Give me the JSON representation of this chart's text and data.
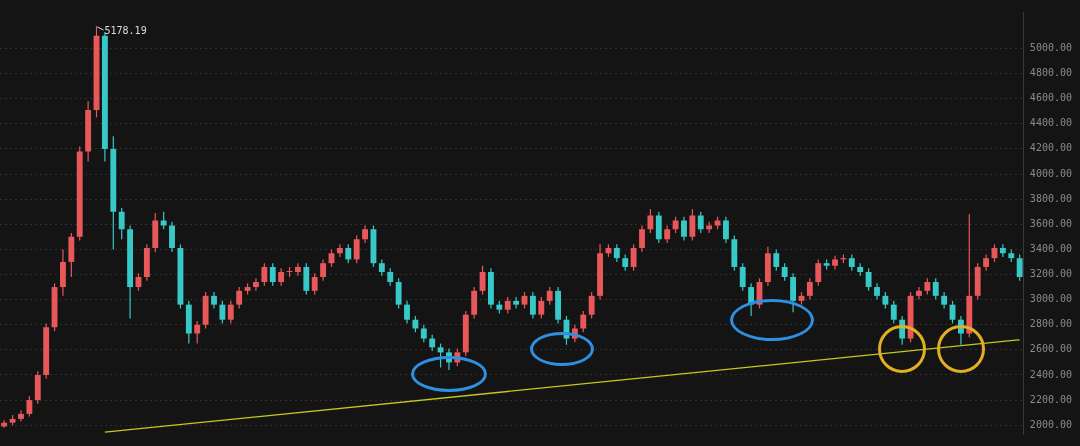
{
  "chart_data": {
    "type": "candlestick",
    "categories": [
      null,
      null,
      null,
      null,
      null,
      null,
      null,
      null,
      null,
      null,
      null,
      null,
      null,
      null,
      null,
      null,
      null,
      null,
      null,
      null,
      null,
      null,
      null,
      null,
      null,
      null,
      null,
      null,
      null,
      null,
      null,
      null,
      null,
      null,
      null,
      null,
      null,
      null,
      null,
      null,
      null,
      null,
      null,
      null,
      null,
      null,
      null,
      null,
      null,
      null,
      null,
      null,
      null,
      null,
      null,
      null,
      null,
      null,
      null,
      null,
      null,
      null,
      null,
      null,
      null,
      null,
      null,
      null,
      null,
      null,
      null,
      null,
      null,
      null,
      null,
      null,
      null,
      null,
      null,
      null,
      null,
      null,
      null,
      null,
      null,
      null,
      null,
      null,
      null,
      null,
      null,
      null,
      null,
      null,
      null,
      null,
      null,
      null,
      null,
      null,
      null,
      null,
      null,
      null,
      null,
      null,
      null,
      null,
      null,
      null,
      null,
      null,
      null,
      null,
      null,
      null,
      null,
      null,
      null,
      null,
      null,
      null
    ],
    "ohlc": [
      [
        1990,
        2040,
        1980,
        2020
      ],
      [
        2020,
        2080,
        2000,
        2050
      ],
      [
        2050,
        2120,
        2030,
        2090
      ],
      [
        2090,
        2230,
        2070,
        2200
      ],
      [
        2200,
        2430,
        2170,
        2400
      ],
      [
        2400,
        2810,
        2370,
        2780
      ],
      [
        2780,
        3130,
        2750,
        3100
      ],
      [
        3100,
        3400,
        3030,
        3300
      ],
      [
        3300,
        3530,
        3180,
        3500
      ],
      [
        3500,
        4220,
        3470,
        4180
      ],
      [
        4180,
        4580,
        4100,
        4510
      ],
      [
        4510,
        5178.19,
        4450,
        5100
      ],
      [
        5100,
        5130,
        4100,
        4200
      ],
      [
        4200,
        4300,
        3400,
        3700
      ],
      [
        3700,
        3730,
        3480,
        3560
      ],
      [
        3560,
        3590,
        2850,
        3100
      ],
      [
        3100,
        3210,
        3070,
        3180
      ],
      [
        3180,
        3440,
        3150,
        3410
      ],
      [
        3410,
        3690,
        3380,
        3630
      ],
      [
        3630,
        3700,
        3560,
        3590
      ],
      [
        3590,
        3620,
        3380,
        3410
      ],
      [
        3410,
        3440,
        2930,
        2960
      ],
      [
        2960,
        2990,
        2650,
        2730
      ],
      [
        2730,
        2830,
        2650,
        2800
      ],
      [
        2800,
        3060,
        2770,
        3030
      ],
      [
        3030,
        3060,
        2930,
        2960
      ],
      [
        2960,
        2990,
        2810,
        2840
      ],
      [
        2840,
        2990,
        2810,
        2960
      ],
      [
        2960,
        3100,
        2930,
        3070
      ],
      [
        3070,
        3130,
        3040,
        3100
      ],
      [
        3100,
        3170,
        3070,
        3140
      ],
      [
        3140,
        3290,
        3110,
        3260
      ],
      [
        3260,
        3290,
        3110,
        3140
      ],
      [
        3140,
        3250,
        3110,
        3220
      ],
      [
        3220,
        3260,
        3180,
        3220
      ],
      [
        3220,
        3290,
        3190,
        3260
      ],
      [
        3260,
        3290,
        3040,
        3070
      ],
      [
        3070,
        3210,
        3040,
        3180
      ],
      [
        3180,
        3320,
        3150,
        3290
      ],
      [
        3290,
        3400,
        3260,
        3370
      ],
      [
        3370,
        3440,
        3340,
        3410
      ],
      [
        3410,
        3440,
        3290,
        3320
      ],
      [
        3320,
        3510,
        3290,
        3480
      ],
      [
        3480,
        3590,
        3450,
        3560
      ],
      [
        3560,
        3590,
        3260,
        3290
      ],
      [
        3290,
        3320,
        3190,
        3220
      ],
      [
        3220,
        3250,
        3110,
        3140
      ],
      [
        3140,
        3170,
        2930,
        2960
      ],
      [
        2960,
        2990,
        2810,
        2840
      ],
      [
        2840,
        2870,
        2740,
        2770
      ],
      [
        2770,
        2800,
        2660,
        2690
      ],
      [
        2690,
        2720,
        2590,
        2620
      ],
      [
        2620,
        2650,
        2460,
        2580
      ],
      [
        2580,
        2610,
        2440,
        2500
      ],
      [
        2500,
        2610,
        2470,
        2580
      ],
      [
        2580,
        2910,
        2550,
        2880
      ],
      [
        2880,
        3100,
        2850,
        3070
      ],
      [
        3070,
        3270,
        3040,
        3220
      ],
      [
        3220,
        3250,
        2930,
        2960
      ],
      [
        2960,
        2990,
        2890,
        2920
      ],
      [
        2920,
        3020,
        2890,
        2990
      ],
      [
        2990,
        3020,
        2930,
        2960
      ],
      [
        2960,
        3060,
        2930,
        3030
      ],
      [
        3030,
        3060,
        2850,
        2880
      ],
      [
        2880,
        3020,
        2850,
        2990
      ],
      [
        2990,
        3100,
        2960,
        3070
      ],
      [
        3070,
        3100,
        2810,
        2840
      ],
      [
        2840,
        2870,
        2640,
        2690
      ],
      [
        2690,
        2800,
        2660,
        2770
      ],
      [
        2770,
        2910,
        2740,
        2880
      ],
      [
        2880,
        3060,
        2850,
        3030
      ],
      [
        3030,
        3440,
        3000,
        3370
      ],
      [
        3370,
        3440,
        3340,
        3410
      ],
      [
        3410,
        3440,
        3300,
        3330
      ],
      [
        3330,
        3360,
        3230,
        3260
      ],
      [
        3260,
        3440,
        3230,
        3410
      ],
      [
        3410,
        3590,
        3380,
        3560
      ],
      [
        3560,
        3720,
        3530,
        3670
      ],
      [
        3670,
        3700,
        3450,
        3480
      ],
      [
        3480,
        3590,
        3450,
        3560
      ],
      [
        3560,
        3660,
        3530,
        3630
      ],
      [
        3630,
        3660,
        3470,
        3500
      ],
      [
        3500,
        3720,
        3470,
        3670
      ],
      [
        3670,
        3700,
        3530,
        3560
      ],
      [
        3560,
        3620,
        3530,
        3590
      ],
      [
        3590,
        3660,
        3560,
        3630
      ],
      [
        3630,
        3660,
        3450,
        3480
      ],
      [
        3480,
        3510,
        3230,
        3260
      ],
      [
        3260,
        3290,
        3070,
        3100
      ],
      [
        3100,
        3130,
        2870,
        2960
      ],
      [
        2960,
        3170,
        2930,
        3140
      ],
      [
        3140,
        3420,
        3110,
        3370
      ],
      [
        3370,
        3400,
        3230,
        3260
      ],
      [
        3260,
        3290,
        3150,
        3180
      ],
      [
        3180,
        3210,
        2900,
        2990
      ],
      [
        2990,
        3060,
        2960,
        3030
      ],
      [
        3030,
        3170,
        3000,
        3140
      ],
      [
        3140,
        3320,
        3110,
        3290
      ],
      [
        3290,
        3320,
        3240,
        3270
      ],
      [
        3270,
        3350,
        3240,
        3320
      ],
      [
        3320,
        3360,
        3290,
        3330
      ],
      [
        3330,
        3360,
        3230,
        3260
      ],
      [
        3260,
        3290,
        3190,
        3220
      ],
      [
        3220,
        3250,
        3070,
        3100
      ],
      [
        3100,
        3130,
        3000,
        3030
      ],
      [
        3030,
        3060,
        2930,
        2960
      ],
      [
        2960,
        2990,
        2810,
        2840
      ],
      [
        2840,
        2870,
        2640,
        2690
      ],
      [
        2690,
        3060,
        2660,
        3030
      ],
      [
        3030,
        3100,
        3000,
        3070
      ],
      [
        3070,
        3170,
        3040,
        3140
      ],
      [
        3140,
        3170,
        3000,
        3030
      ],
      [
        3030,
        3060,
        2930,
        2960
      ],
      [
        2960,
        2990,
        2810,
        2840
      ],
      [
        2840,
        2870,
        2640,
        2730
      ],
      [
        2730,
        3680,
        2700,
        3030
      ],
      [
        3030,
        3290,
        3000,
        3260
      ],
      [
        3260,
        3360,
        3230,
        3330
      ],
      [
        3330,
        3440,
        3300,
        3410
      ],
      [
        3410,
        3440,
        3340,
        3370
      ],
      [
        3370,
        3400,
        3300,
        3330
      ],
      [
        3330,
        3360,
        3150,
        3180
      ]
    ],
    "colors": [
      "#e8585a",
      "#e8585a",
      "#e8585a",
      "#e8585a",
      "#e8585a",
      "#e8585a",
      "#e8585a",
      "#e8585a",
      "#e8585a",
      "#e8585a",
      "#e8585a",
      "#e8585a",
      "#38c8c8",
      "#38c8c8",
      "#38c8c8",
      "#38c8c8",
      "#e8585a",
      "#e8585a",
      "#e8585a",
      "#38c8c8",
      "#38c8c8",
      "#38c8c8",
      "#38c8c8",
      "#e8585a",
      "#e8585a",
      "#38c8c8",
      "#38c8c8",
      "#e8585a",
      "#e8585a",
      "#e8585a",
      "#e8585a",
      "#e8585a",
      "#38c8c8",
      "#e8585a",
      "#e8585a",
      "#e8585a",
      "#38c8c8",
      "#e8585a",
      "#e8585a",
      "#e8585a",
      "#e8585a",
      "#38c8c8",
      "#e8585a",
      "#e8585a",
      "#38c8c8",
      "#38c8c8",
      "#38c8c8",
      "#38c8c8",
      "#38c8c8",
      "#38c8c8",
      "#38c8c8",
      "#38c8c8",
      "#38c8c8",
      "#38c8c8",
      "#e8585a",
      "#e8585a",
      "#e8585a",
      "#e8585a",
      "#38c8c8",
      "#38c8c8",
      "#e8585a",
      "#38c8c8",
      "#e8585a",
      "#38c8c8",
      "#e8585a",
      "#e8585a",
      "#38c8c8",
      "#38c8c8",
      "#e8585a",
      "#e8585a",
      "#e8585a",
      "#e8585a",
      "#e8585a",
      "#38c8c8",
      "#38c8c8",
      "#e8585a",
      "#e8585a",
      "#e8585a",
      "#38c8c8",
      "#e8585a",
      "#e8585a",
      "#38c8c8",
      "#e8585a",
      "#38c8c8",
      "#e8585a",
      "#e8585a",
      "#38c8c8",
      "#38c8c8",
      "#38c8c8",
      "#38c8c8",
      "#e8585a",
      "#e8585a",
      "#38c8c8",
      "#38c8c8",
      "#38c8c8",
      "#e8585a",
      "#e8585a",
      "#e8585a",
      "#38c8c8",
      "#e8585a",
      "#e8585a",
      "#38c8c8",
      "#38c8c8",
      "#38c8c8",
      "#38c8c8",
      "#38c8c8",
      "#38c8c8",
      "#38c8c8",
      "#e8585a",
      "#e8585a",
      "#e8585a",
      "#38c8c8",
      "#38c8c8",
      "#38c8c8",
      "#38c8c8",
      "#e8585a",
      "#e8585a",
      "#e8585a",
      "#e8585a",
      "#38c8c8",
      "#38c8c8",
      "#38c8c8"
    ],
    "series": [
      {
        "type": "line",
        "color": "#c8c81e",
        "values": [
          null,
          null,
          null,
          null,
          null,
          null,
          null,
          null,
          null,
          null,
          null,
          null,
          1945,
          null,
          null,
          null,
          null,
          null,
          null,
          null,
          null,
          null,
          null,
          null,
          null,
          null,
          null,
          null,
          null,
          null,
          null,
          null,
          null,
          null,
          null,
          null,
          null,
          null,
          null,
          null,
          null,
          null,
          null,
          null,
          null,
          null,
          null,
          null,
          null,
          null,
          null,
          null,
          null,
          null,
          null,
          null,
          null,
          null,
          null,
          null,
          null,
          null,
          null,
          null,
          null,
          null,
          null,
          null,
          null,
          null,
          null,
          null,
          null,
          null,
          null,
          null,
          null,
          null,
          null,
          null,
          null,
          null,
          null,
          null,
          null,
          null,
          null,
          null,
          null,
          null,
          null,
          null,
          null,
          null,
          null,
          null,
          null,
          null,
          null,
          null,
          null,
          null,
          null,
          null,
          null,
          null,
          null,
          null,
          null,
          null,
          null,
          null,
          null,
          null,
          null,
          null,
          null,
          null,
          null,
          null,
          null,
          2680
        ]
      }
    ],
    "ylim": [
      1930,
      5290
    ],
    "yticks": [
      {
        "value": 2000,
        "label": "2000.00"
      },
      {
        "value": 2200,
        "label": "2200.00"
      },
      {
        "value": 2400,
        "label": "2400.00"
      },
      {
        "value": 2600,
        "label": "2600.00"
      },
      {
        "value": 2800,
        "label": "2800.00"
      },
      {
        "value": 3000,
        "label": "3000.00"
      },
      {
        "value": 3200,
        "label": "3200.00"
      },
      {
        "value": 3400,
        "label": "3400.00"
      },
      {
        "value": 3600,
        "label": "3600.00"
      },
      {
        "value": 3800,
        "label": "3800.00"
      },
      {
        "value": 4000,
        "label": "4000.00"
      },
      {
        "value": 4200,
        "label": "4200.00"
      },
      {
        "value": 4400,
        "label": "4400.00"
      },
      {
        "value": 4600,
        "label": "4600.00"
      },
      {
        "value": 4800,
        "label": "4800.00"
      },
      {
        "value": 5000,
        "label": "5000.00"
      }
    ],
    "grid": "y",
    "tick_labels": "y",
    "annotations": [
      "5178.19"
    ]
  }
}
